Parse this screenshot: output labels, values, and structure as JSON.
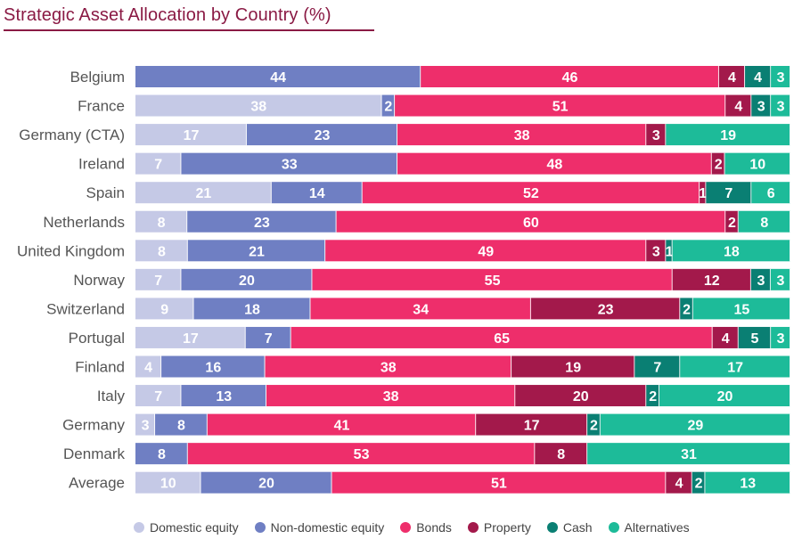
{
  "chart_data": {
    "type": "bar",
    "orientation": "horizontal",
    "stacked": true,
    "title": "Strategic Asset Allocation by Country (%)",
    "xlabel": "",
    "ylabel": "",
    "categories": [
      "Belgium",
      "France",
      "Germany (CTA)",
      "Ireland",
      "Spain",
      "Netherlands",
      "United Kingdom",
      "Norway",
      "Switzerland",
      "Portugal",
      "Finland",
      "Italy",
      "Germany",
      "Denmark",
      "Average"
    ],
    "series": [
      {
        "name": "Domestic equity",
        "color": "#c5c9e6",
        "values": [
          0,
          38,
          17,
          7,
          21,
          8,
          8,
          7,
          9,
          17,
          4,
          7,
          3,
          0,
          10
        ]
      },
      {
        "name": "Non-domestic equity",
        "color": "#6f7fc3",
        "values": [
          44,
          2,
          23,
          33,
          14,
          23,
          21,
          20,
          18,
          7,
          16,
          13,
          8,
          8,
          20
        ]
      },
      {
        "name": "Bonds",
        "color": "#ee2e6b",
        "values": [
          46,
          51,
          38,
          48,
          52,
          60,
          49,
          55,
          34,
          65,
          38,
          38,
          41,
          53,
          51
        ]
      },
      {
        "name": "Property",
        "color": "#a3194b",
        "values": [
          4,
          4,
          3,
          2,
          1,
          2,
          3,
          12,
          23,
          4,
          19,
          20,
          17,
          8,
          4
        ]
      },
      {
        "name": "Cash",
        "color": "#0a7f73",
        "values": [
          4,
          3,
          0,
          0,
          7,
          0,
          1,
          3,
          2,
          5,
          7,
          2,
          2,
          0,
          2
        ]
      },
      {
        "name": "Alternatives",
        "color": "#1dbb99",
        "values": [
          3,
          3,
          19,
          10,
          6,
          8,
          18,
          3,
          15,
          3,
          17,
          20,
          29,
          31,
          13
        ]
      }
    ],
    "label_colors": {
      "Domestic equity": "#ffffff",
      "Non-domestic equity": "#ffffff",
      "Bonds": "#ffffff",
      "Property": "#ffffff",
      "Cash": "#ffffff",
      "Alternatives": "#ffffff"
    },
    "legend_position": "bottom",
    "grid": false
  }
}
